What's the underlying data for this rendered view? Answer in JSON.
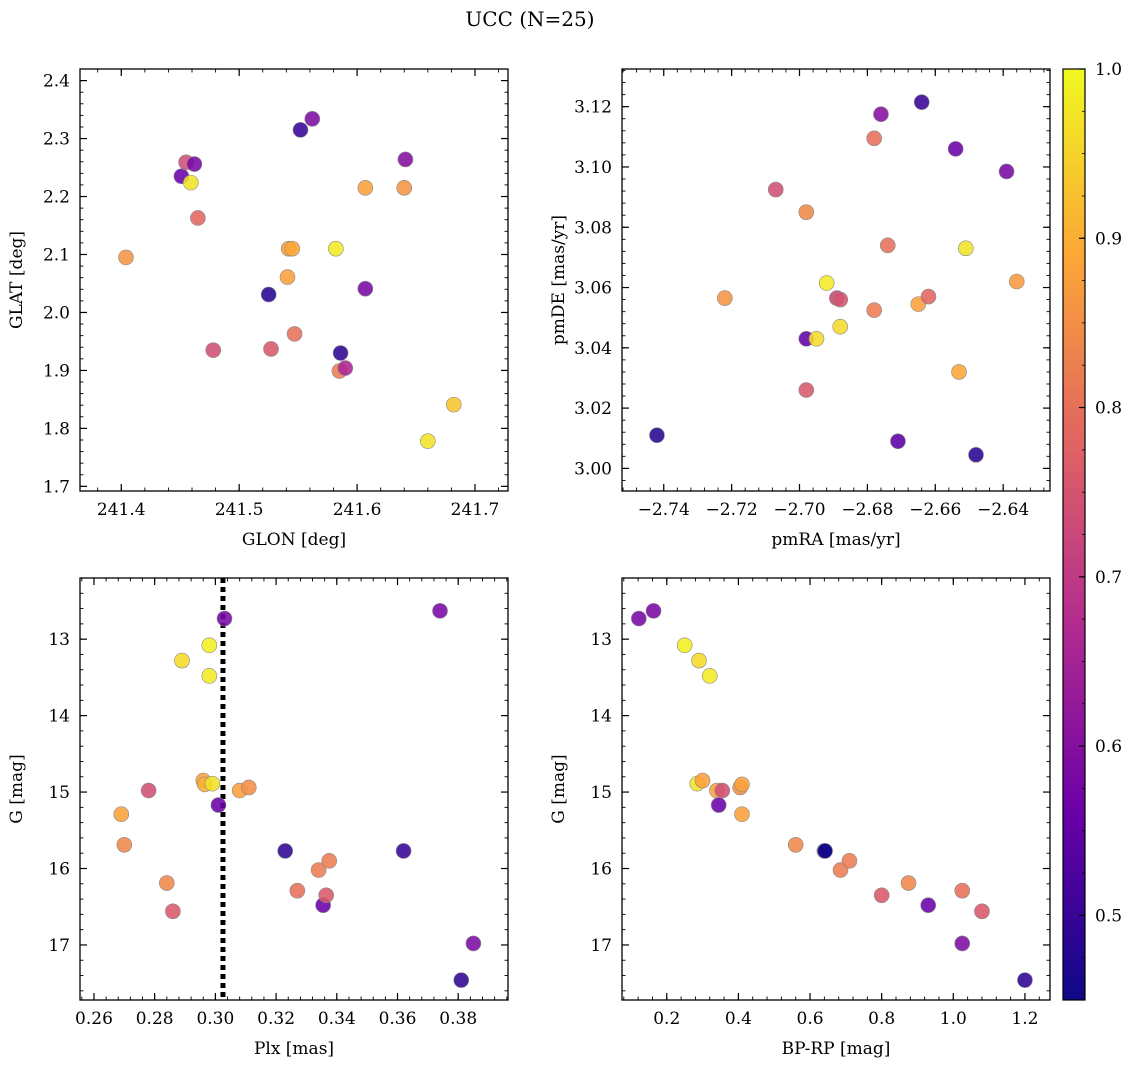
{
  "figure": {
    "title": "UCC (N=25)",
    "colors": {
      "viridis_stops": [
        "#0d0887",
        "#6a00a8",
        "#b12a90",
        "#e16462",
        "#fca636",
        "#f0f921"
      ]
    }
  },
  "colorbar": {
    "range": [
      0.45,
      1.0
    ],
    "ticks": [
      0.5,
      0.6,
      0.7,
      0.8,
      0.9,
      1.0
    ],
    "tick_labels": [
      "0.5",
      "0.6",
      "0.7",
      "0.8",
      "0.9",
      "1.0"
    ]
  },
  "chart_data": [
    {
      "type": "scatter",
      "panel": "top-left",
      "xlabel": "GLON [deg]",
      "ylabel": "GLAT [deg]",
      "xlim": [
        241.365,
        241.728
      ],
      "ylim": [
        1.692,
        2.42
      ],
      "y_inverted": false,
      "xticks": [
        241.4,
        241.5,
        241.6,
        241.7
      ],
      "xtick_labels": [
        "241.4",
        "241.5",
        "241.6",
        "241.7"
      ],
      "yticks": [
        1.7,
        1.8,
        1.9,
        2.0,
        2.1,
        2.2,
        2.3,
        2.4
      ],
      "ytick_labels": [
        "1.7",
        "1.8",
        "1.9",
        "2.0",
        "2.1",
        "2.2",
        "2.3",
        "2.4"
      ],
      "points": [
        {
          "x": 241.404,
          "y": 2.095,
          "c": 0.86
        },
        {
          "x": 241.451,
          "y": 2.235,
          "c": 0.56
        },
        {
          "x": 241.455,
          "y": 2.259,
          "c": 0.74
        },
        {
          "x": 241.459,
          "y": 2.224,
          "c": 0.97
        },
        {
          "x": 241.462,
          "y": 2.256,
          "c": 0.58
        },
        {
          "x": 241.465,
          "y": 2.163,
          "c": 0.78
        },
        {
          "x": 241.478,
          "y": 1.935,
          "c": 0.74
        },
        {
          "x": 241.525,
          "y": 2.031,
          "c": 0.48
        },
        {
          "x": 241.527,
          "y": 1.937,
          "c": 0.76
        },
        {
          "x": 241.541,
          "y": 2.061,
          "c": 0.88
        },
        {
          "x": 241.542,
          "y": 2.11,
          "c": 0.88
        },
        {
          "x": 241.545,
          "y": 2.11,
          "c": 0.89
        },
        {
          "x": 241.547,
          "y": 1.963,
          "c": 0.8
        },
        {
          "x": 241.552,
          "y": 2.315,
          "c": 0.5
        },
        {
          "x": 241.562,
          "y": 2.334,
          "c": 0.59
        },
        {
          "x": 241.582,
          "y": 2.11,
          "c": 0.98
        },
        {
          "x": 241.585,
          "y": 1.899,
          "c": 0.82
        },
        {
          "x": 241.586,
          "y": 1.93,
          "c": 0.49
        },
        {
          "x": 241.59,
          "y": 1.904,
          "c": 0.66
        },
        {
          "x": 241.607,
          "y": 2.041,
          "c": 0.58
        },
        {
          "x": 241.607,
          "y": 2.215,
          "c": 0.88
        },
        {
          "x": 241.64,
          "y": 2.215,
          "c": 0.86
        },
        {
          "x": 241.641,
          "y": 2.264,
          "c": 0.6
        },
        {
          "x": 241.66,
          "y": 1.778,
          "c": 0.97
        },
        {
          "x": 241.682,
          "y": 1.841,
          "c": 0.93
        }
      ]
    },
    {
      "type": "scatter",
      "panel": "top-right",
      "xlabel": "pmRA [mas/yr]",
      "ylabel": "pmDE [mas/yr]",
      "xlim": [
        -2.7523,
        -2.6262
      ],
      "ylim": [
        2.9925,
        3.1325
      ],
      "y_inverted": false,
      "xticks": [
        -2.74,
        -2.72,
        -2.7,
        -2.68,
        -2.66,
        -2.64
      ],
      "xtick_labels": [
        "−2.74",
        "−2.72",
        "−2.70",
        "−2.68",
        "−2.66",
        "−2.64"
      ],
      "yticks": [
        3.0,
        3.02,
        3.04,
        3.06,
        3.08,
        3.1,
        3.12
      ],
      "ytick_labels": [
        "3.00",
        "3.02",
        "3.04",
        "3.06",
        "3.08",
        "3.10",
        "3.12"
      ],
      "points": [
        {
          "x": -2.742,
          "y": 3.011,
          "c": 0.48
        },
        {
          "x": -2.722,
          "y": 3.0565,
          "c": 0.86
        },
        {
          "x": -2.707,
          "y": 3.0925,
          "c": 0.74
        },
        {
          "x": -2.698,
          "y": 3.085,
          "c": 0.84
        },
        {
          "x": -2.698,
          "y": 3.043,
          "c": 0.55
        },
        {
          "x": -2.698,
          "y": 3.026,
          "c": 0.76
        },
        {
          "x": -2.695,
          "y": 3.043,
          "c": 0.96
        },
        {
          "x": -2.692,
          "y": 3.0615,
          "c": 0.98
        },
        {
          "x": -2.689,
          "y": 3.0565,
          "c": 0.72
        },
        {
          "x": -2.688,
          "y": 3.056,
          "c": 0.75
        },
        {
          "x": -2.688,
          "y": 3.047,
          "c": 0.96
        },
        {
          "x": -2.678,
          "y": 3.0525,
          "c": 0.82
        },
        {
          "x": -2.678,
          "y": 3.1095,
          "c": 0.8
        },
        {
          "x": -2.676,
          "y": 3.1175,
          "c": 0.6
        },
        {
          "x": -2.674,
          "y": 3.074,
          "c": 0.8
        },
        {
          "x": -2.671,
          "y": 3.009,
          "c": 0.54
        },
        {
          "x": -2.664,
          "y": 3.1215,
          "c": 0.5
        },
        {
          "x": -2.665,
          "y": 3.0545,
          "c": 0.88
        },
        {
          "x": -2.662,
          "y": 3.057,
          "c": 0.78
        },
        {
          "x": -2.654,
          "y": 3.106,
          "c": 0.56
        },
        {
          "x": -2.653,
          "y": 3.032,
          "c": 0.89
        },
        {
          "x": -2.651,
          "y": 3.073,
          "c": 0.97
        },
        {
          "x": -2.648,
          "y": 3.0045,
          "c": 0.48
        },
        {
          "x": -2.639,
          "y": 3.0985,
          "c": 0.58
        },
        {
          "x": -2.636,
          "y": 3.062,
          "c": 0.87
        }
      ]
    },
    {
      "type": "scatter",
      "panel": "bottom-left",
      "xlabel": "Plx [mas]",
      "ylabel": "G [mag]",
      "xlim": [
        0.2554,
        0.3964
      ],
      "ylim": [
        12.2,
        17.72
      ],
      "y_inverted": true,
      "xticks": [
        0.26,
        0.28,
        0.3,
        0.32,
        0.34,
        0.36,
        0.38
      ],
      "xtick_labels": [
        "0.26",
        "0.28",
        "0.30",
        "0.32",
        "0.34",
        "0.36",
        "0.38"
      ],
      "yticks": [
        13,
        14,
        15,
        16,
        17
      ],
      "ytick_labels": [
        "13",
        "14",
        "15",
        "16",
        "17"
      ],
      "vline": {
        "x": 0.3025,
        "style": "dotted"
      },
      "points": [
        {
          "x": 0.269,
          "y": 15.29,
          "c": 0.88
        },
        {
          "x": 0.27,
          "y": 15.69,
          "c": 0.84
        },
        {
          "x": 0.278,
          "y": 14.98,
          "c": 0.74
        },
        {
          "x": 0.284,
          "y": 16.19,
          "c": 0.84
        },
        {
          "x": 0.286,
          "y": 16.56,
          "c": 0.76
        },
        {
          "x": 0.289,
          "y": 13.28,
          "c": 0.96
        },
        {
          "x": 0.296,
          "y": 14.85,
          "c": 0.88
        },
        {
          "x": 0.2965,
          "y": 14.9,
          "c": 0.9
        },
        {
          "x": 0.298,
          "y": 13.08,
          "c": 0.99
        },
        {
          "x": 0.298,
          "y": 13.48,
          "c": 0.98
        },
        {
          "x": 0.299,
          "y": 14.89,
          "c": 0.97
        },
        {
          "x": 0.301,
          "y": 15.17,
          "c": 0.56
        },
        {
          "x": 0.303,
          "y": 12.73,
          "c": 0.58
        },
        {
          "x": 0.308,
          "y": 14.98,
          "c": 0.88
        },
        {
          "x": 0.311,
          "y": 14.94,
          "c": 0.85
        },
        {
          "x": 0.323,
          "y": 15.77,
          "c": 0.49
        },
        {
          "x": 0.327,
          "y": 16.29,
          "c": 0.8
        },
        {
          "x": 0.334,
          "y": 16.02,
          "c": 0.82
        },
        {
          "x": 0.3355,
          "y": 16.48,
          "c": 0.56
        },
        {
          "x": 0.3365,
          "y": 16.35,
          "c": 0.76
        },
        {
          "x": 0.3375,
          "y": 15.9,
          "c": 0.82
        },
        {
          "x": 0.362,
          "y": 15.77,
          "c": 0.5
        },
        {
          "x": 0.374,
          "y": 12.63,
          "c": 0.58
        },
        {
          "x": 0.381,
          "y": 17.46,
          "c": 0.49
        },
        {
          "x": 0.385,
          "y": 16.98,
          "c": 0.59
        }
      ]
    },
    {
      "type": "scatter",
      "panel": "bottom-right",
      "xlabel": "BP-RP [mag]",
      "ylabel": "G [mag]",
      "xlim": [
        0.075,
        1.27
      ],
      "ylim": [
        12.2,
        17.72
      ],
      "y_inverted": true,
      "xticks": [
        0.2,
        0.4,
        0.6,
        0.8,
        1.0,
        1.2
      ],
      "xtick_labels": [
        "0.2",
        "0.4",
        "0.6",
        "0.8",
        "1.0",
        "1.2"
      ],
      "yticks": [
        13,
        14,
        15,
        16,
        17
      ],
      "ytick_labels": [
        "13",
        "14",
        "15",
        "16",
        "17"
      ],
      "points": [
        {
          "x": 0.122,
          "y": 12.73,
          "c": 0.58
        },
        {
          "x": 0.163,
          "y": 12.63,
          "c": 0.58
        },
        {
          "x": 0.25,
          "y": 13.08,
          "c": 0.99
        },
        {
          "x": 0.29,
          "y": 13.28,
          "c": 0.96
        },
        {
          "x": 0.32,
          "y": 13.48,
          "c": 0.98
        },
        {
          "x": 0.285,
          "y": 14.89,
          "c": 0.97
        },
        {
          "x": 0.3,
          "y": 14.85,
          "c": 0.88
        },
        {
          "x": 0.34,
          "y": 14.98,
          "c": 0.88
        },
        {
          "x": 0.355,
          "y": 14.98,
          "c": 0.74
        },
        {
          "x": 0.345,
          "y": 15.17,
          "c": 0.56
        },
        {
          "x": 0.405,
          "y": 14.94,
          "c": 0.85
        },
        {
          "x": 0.41,
          "y": 14.9,
          "c": 0.88
        },
        {
          "x": 0.41,
          "y": 15.29,
          "c": 0.88
        },
        {
          "x": 0.56,
          "y": 15.69,
          "c": 0.84
        },
        {
          "x": 0.64,
          "y": 15.77,
          "c": 0.49
        },
        {
          "x": 0.642,
          "y": 15.77,
          "c": 0.45
        },
        {
          "x": 0.685,
          "y": 16.02,
          "c": 0.82
        },
        {
          "x": 0.71,
          "y": 15.9,
          "c": 0.82
        },
        {
          "x": 0.8,
          "y": 16.35,
          "c": 0.76
        },
        {
          "x": 0.875,
          "y": 16.19,
          "c": 0.84
        },
        {
          "x": 0.93,
          "y": 16.48,
          "c": 0.56
        },
        {
          "x": 1.025,
          "y": 16.98,
          "c": 0.59
        },
        {
          "x": 1.025,
          "y": 16.29,
          "c": 0.8
        },
        {
          "x": 1.08,
          "y": 16.56,
          "c": 0.76
        },
        {
          "x": 1.2,
          "y": 17.46,
          "c": 0.49
        }
      ]
    }
  ]
}
